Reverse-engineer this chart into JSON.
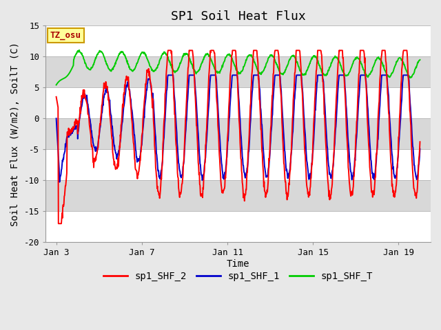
{
  "title": "SP1 Soil Heat Flux",
  "xlabel": "Time",
  "ylabel": "Soil Heat Flux (W/m2), SoilT (C)",
  "ylim": [
    -20,
    15
  ],
  "yticks": [
    -20,
    -15,
    -10,
    -5,
    0,
    5,
    10,
    15
  ],
  "xtick_labels": [
    "Jan 3",
    "Jan 7",
    "Jan 11",
    "Jan 15",
    "Jan 19"
  ],
  "xtick_positions": [
    0,
    4,
    8,
    12,
    16
  ],
  "xlim": [
    -0.5,
    17.5
  ],
  "color_shf2": "#ff0000",
  "color_shf1": "#0000cc",
  "color_shft": "#00cc00",
  "fig_bg_color": "#e8e8e8",
  "band_colors": [
    "#ffffff",
    "#d8d8d8"
  ],
  "grid_color": "#bbbbbb",
  "legend_labels": [
    "sp1_SHF_2",
    "sp1_SHF_1",
    "sp1_SHF_T"
  ],
  "tz_label": "TZ_osu",
  "tz_text_color": "#aa0000",
  "tz_bg_color": "#ffff99",
  "tz_edge_color": "#cc9900",
  "title_fontsize": 13,
  "axis_label_fontsize": 10,
  "tick_fontsize": 9,
  "legend_fontsize": 10
}
